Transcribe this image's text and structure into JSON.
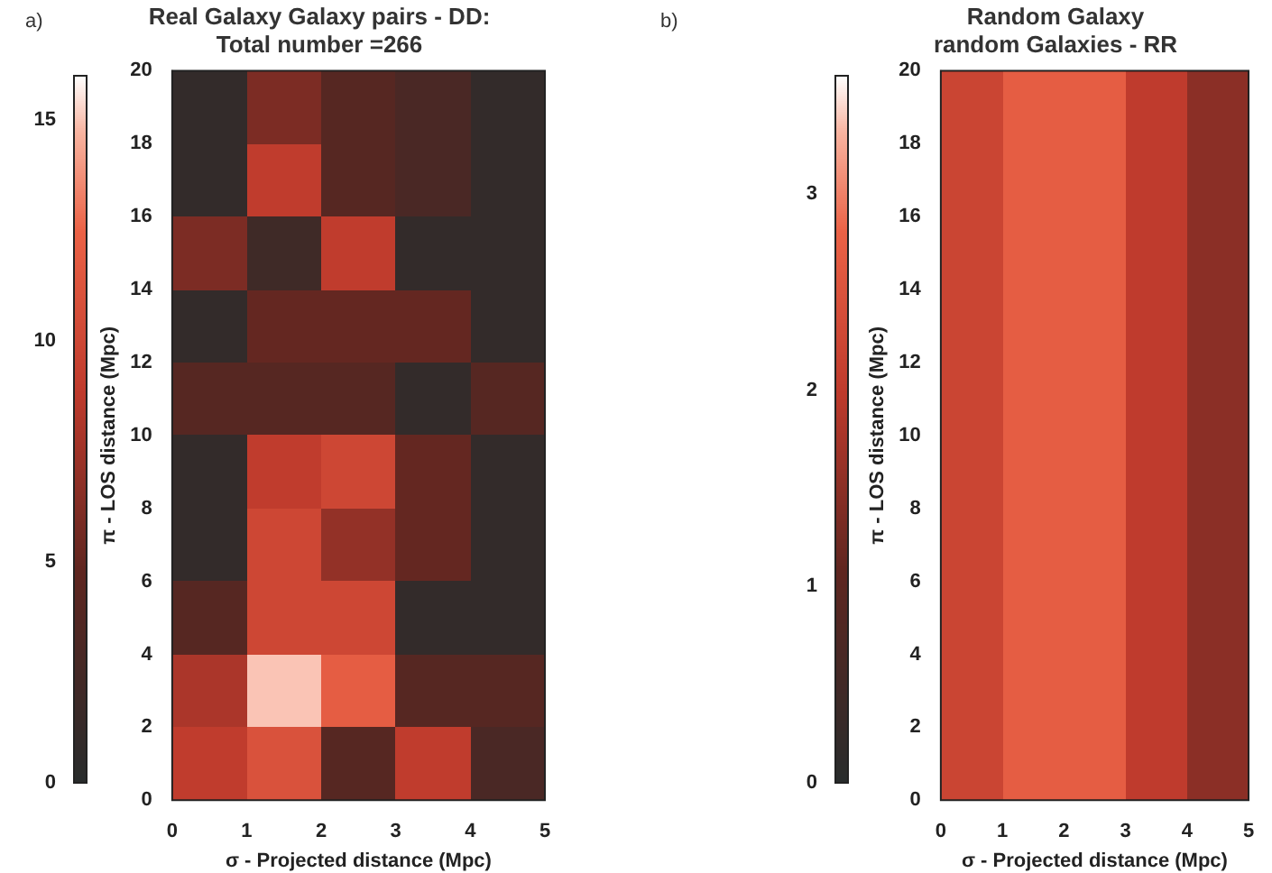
{
  "chart_data": [
    {
      "type": "heatmap",
      "title": "Real Galaxy Galaxy pairs - DD:",
      "subtitle": "Total number =266",
      "xlabel": "σ - Projected distance (Mpc)",
      "ylabel": "π - LOS distance (Mpc)",
      "annotations": [
        "a)"
      ],
      "xlim": [
        0,
        5
      ],
      "xticks": [
        0,
        1,
        2,
        3,
        4,
        5
      ],
      "ylim": [
        0,
        20
      ],
      "yticks": [
        0,
        2,
        4,
        6,
        8,
        10,
        12,
        14,
        16,
        18,
        20
      ],
      "clim": [
        0,
        16
      ],
      "cticks": [
        0,
        5,
        10,
        15
      ],
      "cells": [
        [
          1,
          6,
          4,
          3,
          1
        ],
        [
          1,
          9,
          4,
          3,
          1
        ],
        [
          6,
          2,
          9,
          1,
          1
        ],
        [
          1,
          5,
          5,
          5,
          1
        ],
        [
          4,
          4,
          4,
          1,
          4
        ],
        [
          1,
          9,
          10,
          5,
          1
        ],
        [
          1,
          10,
          7,
          5,
          1
        ],
        [
          4,
          10,
          10,
          1,
          1
        ],
        [
          8,
          15,
          12,
          4,
          4
        ],
        [
          9,
          11,
          4,
          9,
          3
        ]
      ]
    },
    {
      "type": "heatmap",
      "title": "Random Galaxy",
      "subtitle": "random Galaxies - RR",
      "xlabel": "σ - Projected distance (Mpc)",
      "ylabel": "π - LOS distance (Mpc)",
      "annotations": [
        "b)"
      ],
      "xlim": [
        0,
        5
      ],
      "xticks": [
        0,
        1,
        2,
        3,
        4,
        5
      ],
      "ylim": [
        0,
        20
      ],
      "yticks": [
        0,
        2,
        4,
        6,
        8,
        10,
        12,
        14,
        16,
        18,
        20
      ],
      "clim": [
        0,
        3.6
      ],
      "cticks": [
        0,
        1,
        2,
        3
      ],
      "cells": [
        [
          2.2,
          2.7,
          2.7,
          2.0,
          1.5
        ],
        [
          2.2,
          2.7,
          2.7,
          2.0,
          1.5
        ],
        [
          2.2,
          2.7,
          2.7,
          2.0,
          1.5
        ],
        [
          2.2,
          2.7,
          2.7,
          2.0,
          1.5
        ],
        [
          2.2,
          2.7,
          2.7,
          2.0,
          1.5
        ],
        [
          2.2,
          2.7,
          2.7,
          2.0,
          1.5
        ],
        [
          2.2,
          2.7,
          2.7,
          2.0,
          1.5
        ],
        [
          2.2,
          2.7,
          2.7,
          2.0,
          1.5
        ],
        [
          2.2,
          2.7,
          2.7,
          2.0,
          1.5
        ],
        [
          2.2,
          2.7,
          2.7,
          2.0,
          1.5
        ]
      ]
    }
  ]
}
